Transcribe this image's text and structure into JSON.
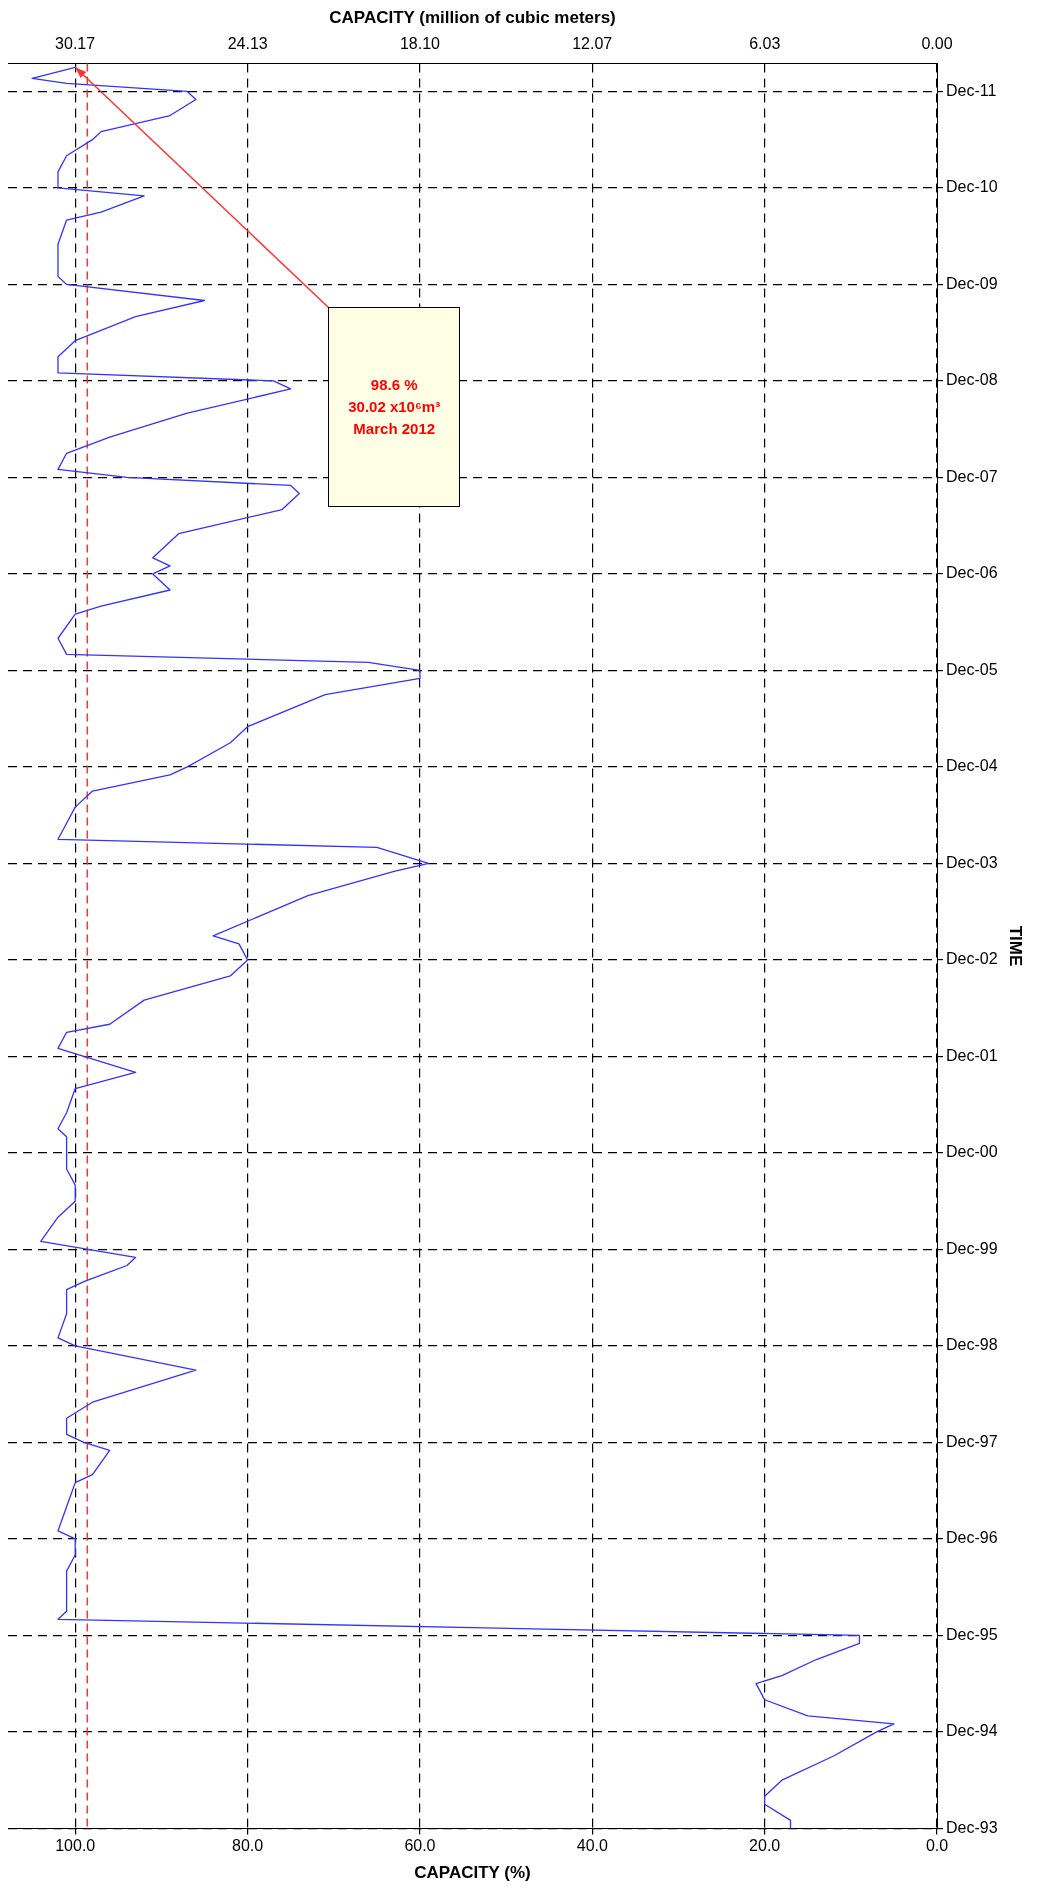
{
  "chart_data": {
    "type": "line",
    "orientation": "horizontal",
    "xlabel": "CAPACITY (%)",
    "x2label": "CAPACITY (million of cubic meters)",
    "ylabel": "TIME",
    "x": [
      "1993-12",
      "1994-01",
      "1994-03",
      "1994-04",
      "1994-06",
      "1994-09",
      "1994-12",
      "1995-01",
      "1995-02",
      "1995-04",
      "1995-06",
      "1995-07",
      "1995-09",
      "1995-11",
      "1995-12",
      "1996-02",
      "1996-03",
      "1996-08",
      "1996-10",
      "1996-12",
      "1997-01",
      "1997-04",
      "1997-07",
      "1997-08",
      "1997-11",
      "1997-12",
      "1998-01",
      "1998-03",
      "1998-05",
      "1998-09",
      "1998-12",
      "1999-01",
      "1999-04",
      "1999-07",
      "1999-08",
      "1999-10",
      "1999-11",
      "2000-01",
      "2000-04",
      "2000-06",
      "2000-08",
      "2000-10",
      "2000-12",
      "2001-02",
      "2001-03",
      "2001-05",
      "2001-08",
      "2001-10",
      "2001-12",
      "2002-01",
      "2002-03",
      "2002-04",
      "2002-07",
      "2002-10",
      "2002-12",
      "2003-02",
      "2003-03",
      "2003-08",
      "2003-11",
      "2003-12",
      "2004-02",
      "2004-03",
      "2004-05",
      "2004-07",
      "2004-09",
      "2004-11",
      "2004-12",
      "2005-03",
      "2005-05",
      "2005-09",
      "2005-11",
      "2005-12",
      "2006-01",
      "2006-02",
      "2006-04",
      "2006-07",
      "2006-08",
      "2006-10",
      "2006-12",
      "2007-01",
      "2007-02",
      "2007-05",
      "2007-06",
      "2007-08",
      "2007-10",
      "2007-11",
      "2007-12",
      "2008-01",
      "2008-03",
      "2008-05",
      "2008-08",
      "2008-11",
      "2008-12",
      "2009-01",
      "2009-03",
      "2009-05",
      "2009-08",
      "2009-10",
      "2009-12",
      "2010-01",
      "2010-03",
      "2010-05",
      "2010-08",
      "2010-09",
      "2010-11",
      "2010-12",
      "2011-02",
      "2011-04",
      "2011-06",
      "2011-07",
      "2011-09",
      "2011-11",
      "2011-12",
      "2012-01",
      "2012-01-20",
      "2012-03"
    ],
    "series": [
      {
        "color": "#3333ff",
        "values": [
          17,
          17,
          20,
          20,
          18,
          12,
          7,
          5,
          15,
          20,
          21,
          18,
          14,
          9,
          9,
          102,
          101,
          101,
          100,
          100,
          102,
          101,
          100,
          98,
          96,
          99,
          101,
          101,
          98,
          86,
          100,
          102,
          101,
          101,
          99,
          94,
          93,
          104,
          102,
          100,
          100,
          101,
          101,
          101,
          102,
          101,
          100,
          93,
          99,
          102,
          101,
          96,
          92,
          82,
          80,
          81,
          84,
          73,
          63,
          59,
          65,
          102,
          101,
          100,
          98,
          89,
          87,
          82,
          80,
          71,
          60,
          60,
          66,
          101,
          102,
          100,
          97,
          89,
          91,
          89,
          91,
          88,
          84,
          76,
          74,
          75,
          94,
          102,
          101,
          96,
          87,
          75,
          77,
          102,
          102,
          100,
          93,
          85,
          101,
          102,
          102,
          102,
          101,
          97,
          92,
          102,
          102,
          101,
          98,
          97,
          89,
          86,
          87,
          101,
          105,
          100
        ]
      }
    ],
    "ylim": [
      "1993-12",
      "2012-03-15"
    ],
    "yticks": [
      {
        "value": "1993-12",
        "label": "Dec-93"
      },
      {
        "value": "1994-12",
        "label": "Dec-94"
      },
      {
        "value": "1995-12",
        "label": "Dec-95"
      },
      {
        "value": "1996-12",
        "label": "Dec-96"
      },
      {
        "value": "1997-12",
        "label": "Dec-97"
      },
      {
        "value": "1998-12",
        "label": "Dec-98"
      },
      {
        "value": "1999-12",
        "label": "Dec-99"
      },
      {
        "value": "2000-12",
        "label": "Dec-00"
      },
      {
        "value": "2001-12",
        "label": "Dec-01"
      },
      {
        "value": "2002-12",
        "label": "Dec-02"
      },
      {
        "value": "2003-12",
        "label": "Dec-03"
      },
      {
        "value": "2004-12",
        "label": "Dec-04"
      },
      {
        "value": "2005-12",
        "label": "Dec-05"
      },
      {
        "value": "2006-12",
        "label": "Dec-06"
      },
      {
        "value": "2007-12",
        "label": "Dec-07"
      },
      {
        "value": "2008-12",
        "label": "Dec-08"
      },
      {
        "value": "2009-12",
        "label": "Dec-09"
      },
      {
        "value": "2010-12",
        "label": "Dec-10"
      },
      {
        "value": "2011-12",
        "label": "Dec-11"
      }
    ],
    "xlim": [
      107.8,
      0
    ],
    "xticks": [
      {
        "value": 0,
        "label": "0.0"
      },
      {
        "value": 20,
        "label": "20.0"
      },
      {
        "value": 40,
        "label": "40.0"
      },
      {
        "value": 60,
        "label": "60.0"
      },
      {
        "value": 80,
        "label": "80.0"
      },
      {
        "value": 100,
        "label": "100.0"
      }
    ],
    "x2lim": [
      32.52,
      0
    ],
    "x2ticks": [
      {
        "value": 0,
        "label": "0.00"
      },
      6.03,
      12.07,
      {
        "value": 18.1,
        "label": "18.10"
      },
      24.13,
      30.17
    ],
    "ref_lines": [
      {
        "axis": "x",
        "value": 98.6,
        "color": "#ff3333",
        "line_style": "dashed"
      }
    ],
    "annotations": [
      "98.6 %\n30.02 x10⁶m³\nMarch 2012"
    ],
    "grid": true,
    "legend": false,
    "marker": "none",
    "line_style": "solid"
  }
}
